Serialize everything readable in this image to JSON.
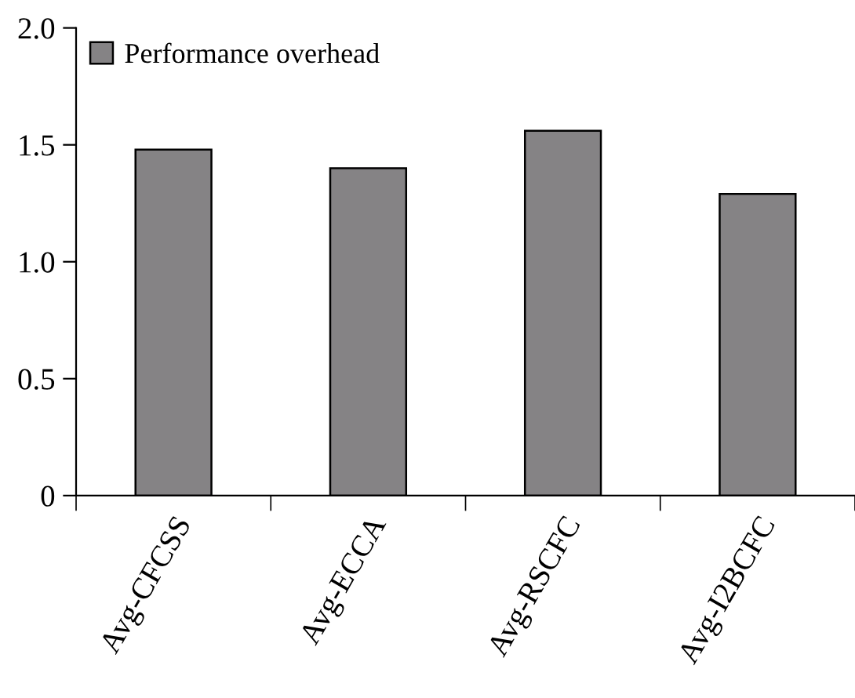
{
  "chart_data": {
    "type": "bar",
    "categories": [
      "Avg-CFCSS",
      "Avg-ECCA",
      "Avg-RSCFC",
      "Avg-I2BCFC"
    ],
    "series": [
      {
        "name": "Performance overhead",
        "color": "#858385",
        "values": [
          1.48,
          1.4,
          1.56,
          1.29
        ]
      }
    ],
    "ylim": [
      0,
      2.0
    ],
    "yticks": [
      0,
      0.5,
      {
        "value": 1,
        "label": "1.0"
      },
      1.5,
      {
        "value": 2,
        "label": "2.0"
      }
    ],
    "legend": "top left",
    "grid": false
  }
}
